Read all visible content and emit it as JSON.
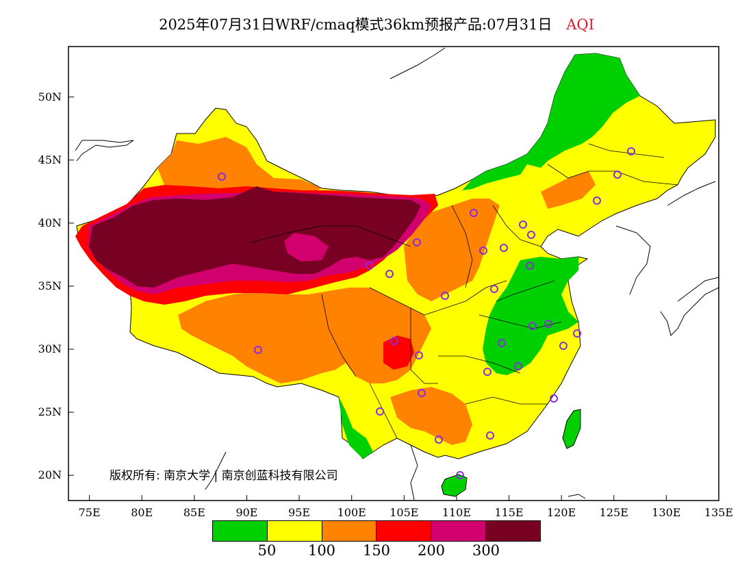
{
  "title": {
    "main": "2025年07月31日WRF/cmaq模式36km预报产品:07月31日",
    "variable": "AQI"
  },
  "copyright": "版权所有: 南京大学 | 南京创蓝科技有限公司",
  "map": {
    "lon_range": [
      73,
      135
    ],
    "lat_range": [
      18,
      54
    ],
    "lon_ticks": [
      "75E",
      "80E",
      "85E",
      "90E",
      "95E",
      "100E",
      "105E",
      "110E",
      "115E",
      "120E",
      "125E",
      "130E",
      "135E"
    ],
    "lat_ticks": [
      "50N",
      "45N",
      "40N",
      "35N",
      "30N",
      "25N",
      "20N"
    ]
  },
  "legend": {
    "colors": [
      "#00d000",
      "#ffff00",
      "#ff8200",
      "#ff0000",
      "#d2006e",
      "#780022"
    ],
    "labels": [
      "50",
      "100",
      "150",
      "200",
      "300"
    ]
  }
}
